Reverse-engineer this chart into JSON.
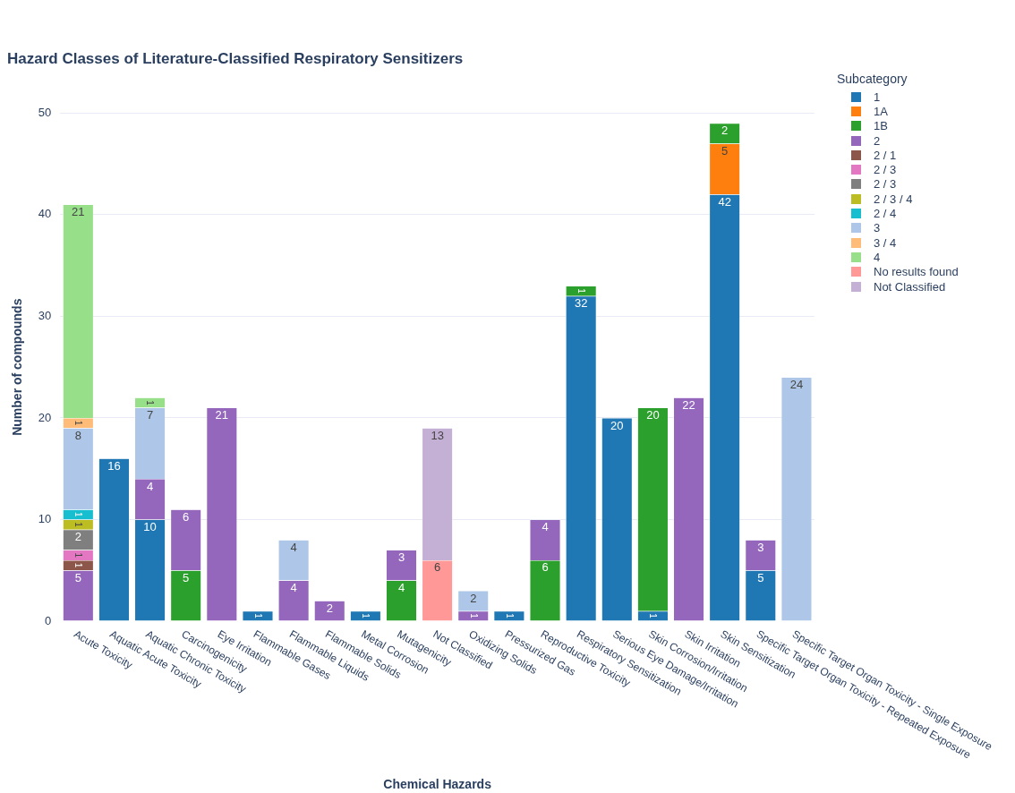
{
  "chart_data": {
    "type": "bar",
    "stacked": true,
    "title": "Hazard Classes of Literature-Classified Respiratory Sensitizers",
    "xlabel": "Chemical Hazards",
    "ylabel": "Number of compounds",
    "legend_title": "Subcategory",
    "legend": "top right",
    "grid": "y",
    "data_labels": true,
    "ylim": [
      0,
      50
    ],
    "yticks": [
      0,
      10,
      20,
      30,
      40,
      50
    ],
    "categories": [
      "Acute Toxicity",
      "Aquatic Acute Toxicity",
      "Aquatic Chronic Toxicity",
      "Carcinogenicity",
      "Eye Irritation",
      "Flammable Gases",
      "Flammable Liquids",
      "Flammable Solids",
      "Metal Corrosion",
      "Mutagenicity",
      "Not Classified",
      "Oxidizing Solids",
      "Pressurized Gas",
      "Reproductive Toxicity",
      "Respiratory Sensitization",
      "Serious Eye Damage/Irritation",
      "Skin Corrosion/Irritation",
      "Skin Irritation",
      "Skin Sensitization",
      "Specific Target Organ Toxicity - Repeated Exposure",
      "Specific Target Organ Toxicity - Single Exposure"
    ],
    "series": [
      {
        "name": "1",
        "color": "#1f77b4",
        "values": [
          null,
          16,
          10,
          null,
          null,
          1,
          null,
          null,
          1,
          null,
          null,
          null,
          1,
          null,
          32,
          20,
          1,
          null,
          42,
          5,
          null
        ]
      },
      {
        "name": "1A",
        "color": "#ff7f0e",
        "values": [
          null,
          null,
          null,
          null,
          null,
          null,
          null,
          null,
          null,
          null,
          null,
          null,
          null,
          null,
          null,
          null,
          null,
          null,
          5,
          null,
          null
        ]
      },
      {
        "name": "1B",
        "color": "#2ca02c",
        "values": [
          null,
          null,
          null,
          5,
          null,
          null,
          null,
          null,
          null,
          4,
          null,
          null,
          null,
          6,
          1,
          null,
          20,
          null,
          2,
          null,
          null
        ]
      },
      {
        "name": "2",
        "color": "#9467bd",
        "values": [
          5,
          null,
          4,
          6,
          21,
          null,
          4,
          2,
          null,
          3,
          null,
          1,
          null,
          4,
          null,
          null,
          null,
          22,
          null,
          3,
          null
        ]
      },
      {
        "name": "2 / 1",
        "color": "#8c564b",
        "values": [
          1,
          null,
          null,
          null,
          null,
          null,
          null,
          null,
          null,
          null,
          null,
          null,
          null,
          null,
          null,
          null,
          null,
          null,
          null,
          null,
          null
        ]
      },
      {
        "name": "2 / 3",
        "color": "#e377c2",
        "values": [
          1,
          null,
          null,
          null,
          null,
          null,
          null,
          null,
          null,
          null,
          null,
          null,
          null,
          null,
          null,
          null,
          null,
          null,
          null,
          null,
          null
        ]
      },
      {
        "name": "2 / 3",
        "color": "#7f7f7f",
        "values": [
          2,
          null,
          null,
          null,
          null,
          null,
          null,
          null,
          null,
          null,
          null,
          null,
          null,
          null,
          null,
          null,
          null,
          null,
          null,
          null,
          null
        ]
      },
      {
        "name": "2 / 3 / 4",
        "color": "#bcbd22",
        "values": [
          1,
          null,
          null,
          null,
          null,
          null,
          null,
          null,
          null,
          null,
          null,
          null,
          null,
          null,
          null,
          null,
          null,
          null,
          null,
          null,
          null
        ]
      },
      {
        "name": "2 / 4",
        "color": "#17becf",
        "values": [
          1,
          null,
          null,
          null,
          null,
          null,
          null,
          null,
          null,
          null,
          null,
          null,
          null,
          null,
          null,
          null,
          null,
          null,
          null,
          null,
          null
        ]
      },
      {
        "name": "3",
        "color": "#aec7e8",
        "values": [
          8,
          null,
          7,
          null,
          null,
          null,
          4,
          null,
          null,
          null,
          null,
          2,
          null,
          null,
          null,
          null,
          null,
          null,
          null,
          null,
          24
        ]
      },
      {
        "name": "3 / 4",
        "color": "#ffbb78",
        "values": [
          1,
          null,
          null,
          null,
          null,
          null,
          null,
          null,
          null,
          null,
          null,
          null,
          null,
          null,
          null,
          null,
          null,
          null,
          null,
          null,
          null
        ]
      },
      {
        "name": "4",
        "color": "#98df8a",
        "values": [
          21,
          null,
          1,
          null,
          null,
          null,
          null,
          null,
          null,
          null,
          null,
          null,
          null,
          null,
          null,
          null,
          null,
          null,
          null,
          null,
          null
        ]
      },
      {
        "name": "No results found",
        "color": "#ff9896",
        "values": [
          null,
          null,
          null,
          null,
          null,
          null,
          null,
          null,
          null,
          null,
          6,
          null,
          null,
          null,
          null,
          null,
          null,
          null,
          null,
          null,
          null
        ]
      },
      {
        "name": "Not Classified",
        "color": "#c5b0d5",
        "values": [
          null,
          null,
          null,
          null,
          null,
          null,
          null,
          null,
          null,
          null,
          13,
          null,
          null,
          null,
          null,
          null,
          null,
          null,
          null,
          null,
          null
        ]
      }
    ]
  }
}
